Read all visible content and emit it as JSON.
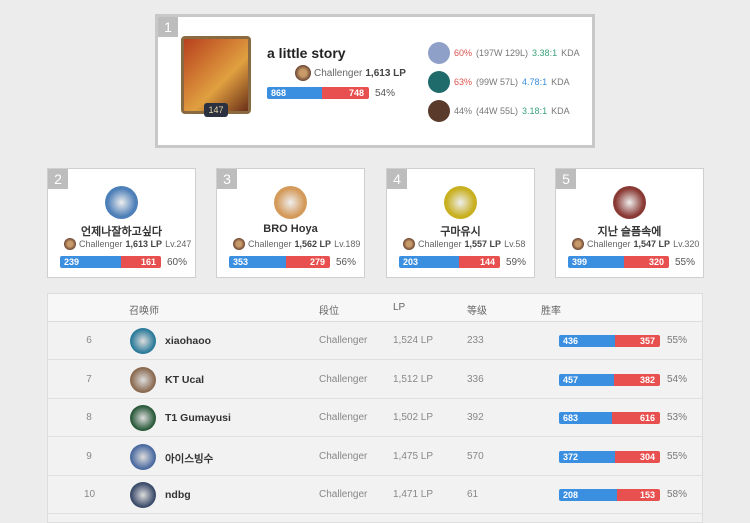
{
  "colors": {
    "win": "#3b8fe0",
    "loss": "#e8504f",
    "kda_green": "#3aa37a",
    "kda_blue": "#3b8fe0",
    "winrate_red": "#d9534f"
  },
  "top": {
    "rank": "1",
    "level": "147",
    "name": "a little story",
    "tier": "Challenger",
    "lp": "1,613 LP",
    "wins": "868",
    "losses": "748",
    "winrate": "54%",
    "winfrac": 0.54,
    "champions": [
      {
        "wr": "60%",
        "record": "(197W 129L)",
        "kda": "3.38:1",
        "kda_label": "KDA",
        "color": "#3aa37a",
        "wr_red": true,
        "avatar": "#8fa0c8"
      },
      {
        "wr": "63%",
        "record": "(99W 57L)",
        "kda": "4.78:1",
        "kda_label": "KDA",
        "color": "#3b8fe0",
        "wr_red": true,
        "avatar": "#1f6a6a"
      },
      {
        "wr": "44%",
        "record": "(44W 55L)",
        "kda": "3.18:1",
        "kda_label": "KDA",
        "color": "#3aa37a",
        "wr_red": false,
        "avatar": "#5a3a2a"
      }
    ]
  },
  "cards": [
    {
      "rank": "2",
      "name": "언제나잘하고싶다",
      "tier": "Challenger",
      "lp": "1,613 LP",
      "level": "Lv.247",
      "wins": "239",
      "losses": "161",
      "winrate": "60%",
      "winfrac": 0.6,
      "avatar": "#4d7fb8"
    },
    {
      "rank": "3",
      "name": "BRO Hoya",
      "tier": "Challenger",
      "lp": "1,562 LP",
      "level": "Lv.189",
      "wins": "353",
      "losses": "279",
      "winrate": "56%",
      "winfrac": 0.56,
      "avatar": "#d49a5a"
    },
    {
      "rank": "4",
      "name": "구마유시",
      "tier": "Challenger",
      "lp": "1,557 LP",
      "level": "Lv.58",
      "wins": "203",
      "losses": "144",
      "winrate": "59%",
      "winfrac": 0.59,
      "avatar": "#c8b020"
    },
    {
      "rank": "5",
      "name": "지난 슬픔속에",
      "tier": "Challenger",
      "lp": "1,547 LP",
      "level": "Lv.320",
      "wins": "399",
      "losses": "320",
      "winrate": "55%",
      "winfrac": 0.55,
      "avatar": "#8a3a34"
    }
  ],
  "table": {
    "headers": {
      "summoner": "召唤师",
      "tier": "段位",
      "lp": "LP",
      "level": "等级",
      "winrate": "胜率"
    },
    "rows": [
      {
        "rank": "6",
        "name": "xiaohaoo",
        "tier": "Challenger",
        "lp": "1,524 LP",
        "level": "233",
        "wins": "436",
        "losses": "357",
        "winrate": "55%",
        "avatar": "#2a7a9a"
      },
      {
        "rank": "7",
        "name": "KT Ucal",
        "tier": "Challenger",
        "lp": "1,512 LP",
        "level": "336",
        "wins": "457",
        "losses": "382",
        "winrate": "54%",
        "avatar": "#8a6a50"
      },
      {
        "rank": "8",
        "name": "T1 Gumayusi",
        "tier": "Challenger",
        "lp": "1,502 LP",
        "level": "392",
        "wins": "683",
        "losses": "616",
        "winrate": "53%",
        "avatar": "#2a5a3a"
      },
      {
        "rank": "9",
        "name": "아이스빙수",
        "tier": "Challenger",
        "lp": "1,475 LP",
        "level": "570",
        "wins": "372",
        "losses": "304",
        "winrate": "55%",
        "avatar": "#4a6aa0"
      },
      {
        "rank": "10",
        "name": "ndbg",
        "tier": "Challenger",
        "lp": "1,471 LP",
        "level": "61",
        "wins": "208",
        "losses": "153",
        "winrate": "58%",
        "avatar": "#3a4a6a"
      }
    ]
  }
}
